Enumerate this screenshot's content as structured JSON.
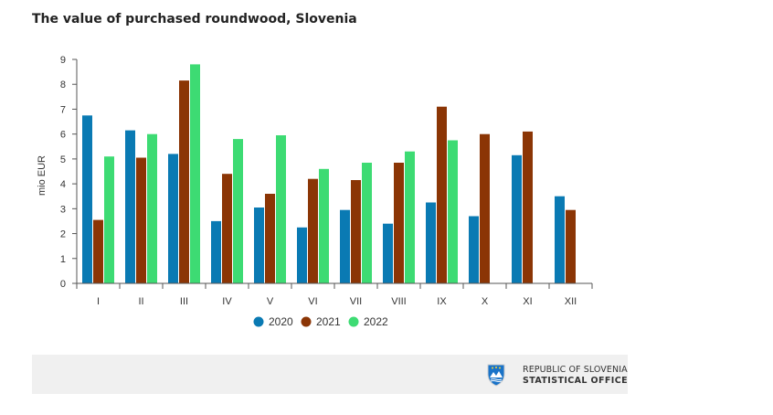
{
  "title": "The value of purchased roundwood, Slovenia",
  "footer": {
    "line1": "REPUBLIC OF SLOVENIA",
    "line2": "STATISTICAL OFFICE",
    "emblem_icon": "slovenia-coat-of-arms-icon"
  },
  "chart_data": {
    "type": "bar",
    "title": "The value of purchased roundwood, Slovenia",
    "xlabel": "",
    "ylabel": "mio EUR",
    "ylim": [
      0,
      9
    ],
    "yticks": [
      0,
      1,
      2,
      3,
      4,
      5,
      6,
      7,
      8,
      9
    ],
    "categories": [
      "I",
      "II",
      "III",
      "IV",
      "V",
      "VI",
      "VII",
      "VIII",
      "IX",
      "X",
      "XI",
      "XII"
    ],
    "series": [
      {
        "name": "2020",
        "color": "#0a7ab3",
        "values": [
          6.75,
          6.15,
          5.2,
          2.5,
          3.05,
          2.25,
          2.95,
          2.4,
          3.25,
          2.7,
          5.15,
          3.5
        ]
      },
      {
        "name": "2021",
        "color": "#8b3505",
        "values": [
          2.55,
          5.05,
          8.15,
          4.4,
          3.6,
          4.2,
          4.15,
          4.85,
          7.1,
          6.0,
          6.1,
          2.95
        ]
      },
      {
        "name": "2022",
        "color": "#3ddb73",
        "values": [
          5.1,
          6.0,
          8.8,
          5.8,
          5.95,
          4.6,
          4.85,
          5.3,
          5.75,
          null,
          null,
          null
        ]
      }
    ],
    "grid": false,
    "legend": "bottom-center"
  }
}
